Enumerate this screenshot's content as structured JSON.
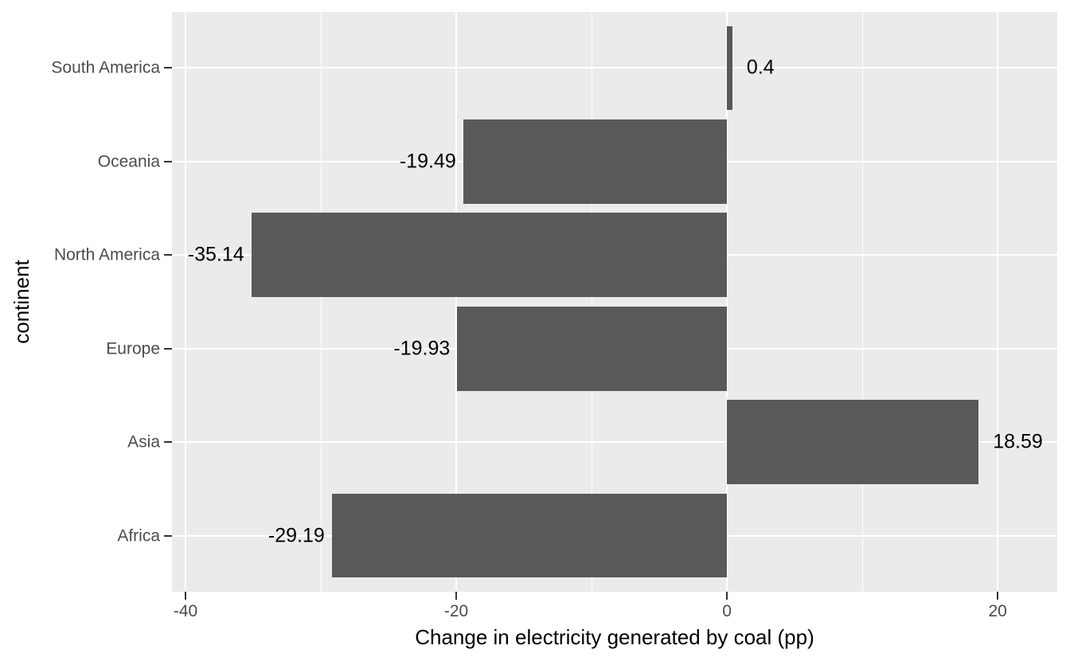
{
  "chart_data": {
    "type": "bar",
    "orientation": "horizontal",
    "title": "",
    "xlabel": "Change in electricity generated by coal (pp)",
    "ylabel": "continent",
    "categories": [
      "South America",
      "Oceania",
      "North America",
      "Europe",
      "Asia",
      "Africa"
    ],
    "values": [
      0.4,
      -19.49,
      -35.14,
      -19.93,
      18.59,
      -29.19
    ],
    "value_labels": [
      "0.4",
      "-19.49",
      "-35.14",
      "-19.93",
      "18.59",
      "-29.19"
    ],
    "x_major_ticks": [
      -40,
      -20,
      0,
      20
    ],
    "x_major_tick_labels": [
      "-40",
      "-20",
      "0",
      "20"
    ],
    "x_minor_ticks": [
      -30,
      -10,
      10
    ],
    "xlim": [
      -41,
      24.4
    ],
    "bar_width_fraction": 0.9,
    "grid": "white major and minor gridlines on gray panel",
    "legend_position": "none",
    "colors": {
      "bar": "#595959",
      "panel_background": "#EBEBEB",
      "figure_background": "#FFFFFF",
      "gridline": "#FFFFFF",
      "axis_text": "#4D4D4D",
      "tick_mark": "#333333",
      "value_label": "#000000",
      "axis_title": "#000000"
    }
  }
}
